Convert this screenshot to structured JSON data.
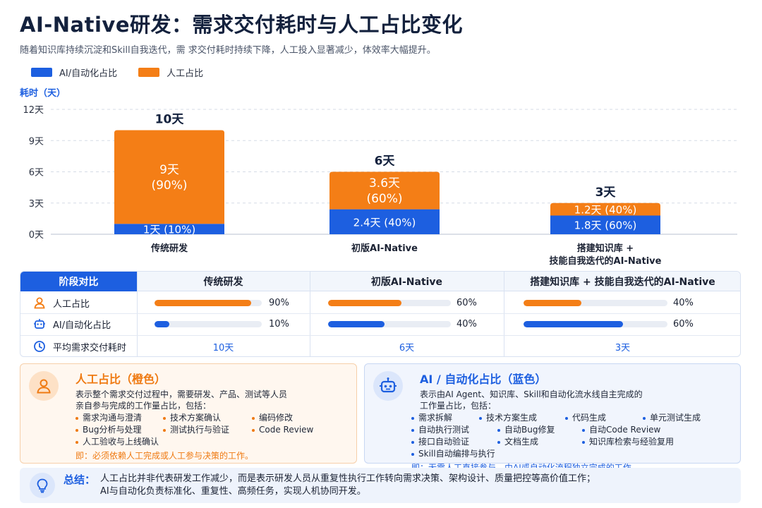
{
  "title": "AI-Native研发：需求交付耗时与人工占比变化",
  "subtitle": "随着知识库持续沉淀和Skill自我迭代，需 求交付耗时持续下降，人工投入显著减少，体效率大幅提升。",
  "colors": {
    "ai": "#1d5fe0",
    "human": "#f47e16",
    "accent": "#1d5fe0"
  },
  "chart_data": {
    "type": "bar",
    "stacked": true,
    "ylabel": "耗时（天）",
    "ylim": [
      0,
      12
    ],
    "yticks": [
      0,
      3,
      6,
      9,
      12
    ],
    "ytick_labels": [
      "0天",
      "3天",
      "6天",
      "9天",
      "12天"
    ],
    "grid": true,
    "legend_position": "top-left",
    "categories": [
      [
        "传统研发"
      ],
      [
        "初版AI-Native"
      ],
      [
        "搭建知识库 +",
        "技能自我迭代的AI-Native"
      ]
    ],
    "totals": [
      10,
      6,
      3
    ],
    "total_labels": [
      "10天",
      "6天",
      "3天"
    ],
    "series": [
      {
        "name": "AI/自动化占比",
        "values": [
          1,
          2.4,
          1.8
        ],
        "labels": [
          [
            "1天 (10%)"
          ],
          [
            "2.4天 (40%)"
          ],
          [
            "1.8天 (60%)"
          ]
        ]
      },
      {
        "name": "人工占比",
        "values": [
          9,
          3.6,
          1.2
        ],
        "labels": [
          [
            "9天",
            "(90%)"
          ],
          [
            "3.6天",
            "(60%)"
          ],
          [
            "1.2天 (40%)"
          ]
        ]
      }
    ]
  },
  "table": {
    "header": "阶段对比",
    "columns": [
      "传统研发",
      "初版AI-Native",
      "搭建知识库 + 技能自我迭代的AI-Native"
    ],
    "rows": {
      "human": {
        "label": "人工占比",
        "values": [
          90,
          60,
          40
        ],
        "texts": [
          "90%",
          "60%",
          "40%"
        ]
      },
      "ai": {
        "label": "AI/自动化占比",
        "values": [
          10,
          40,
          60
        ],
        "texts": [
          "10%",
          "40%",
          "60%"
        ]
      },
      "time": {
        "label": "平均需求交付耗时",
        "texts": [
          "10天",
          "6天",
          "3天"
        ]
      }
    }
  },
  "human_panel": {
    "title": "人工占比（橙色）",
    "desc1": "表示整个需求交付过程中，需要研发、产品、测试等人员",
    "desc2": "亲自参与完成的工作量占比，包括：",
    "items": [
      "需求沟通与澄清",
      "技术方案确认",
      "编码修改",
      "Bug分析与处理",
      "测试执行与验证",
      "Code Review",
      "人工验收与上线确认"
    ],
    "conclusion": "即：必须依赖人工完成或人工参与决策的工作。",
    "icon": "person-icon"
  },
  "ai_panel": {
    "title": "AI / 自动化占比（蓝色）",
    "desc1": "表示由AI Agent、知识库、Skill和自动化流水线自主完成的",
    "desc2": "工作量占比，包括：",
    "items": [
      "需求拆解",
      "技术方案生成",
      "代码生成",
      "单元测试生成",
      "自动执行测试",
      "自动Bug修复",
      "自动Code Review",
      "接口自动验证",
      "文档生成",
      "知识库检索与经验复用",
      "Skill自动编排与执行"
    ],
    "conclusion": "即：无需人工直接参与，由AI或自动化流程独立完成的工作。",
    "icon": "robot-icon"
  },
  "summary": {
    "label": "总结：",
    "line1": "人工占比并非代表研发工作减少，而是表示研发人员从重复性执行工作转向需求决策、架构设计、质量把控等高价值工作；",
    "line2": "AI与自动化负责标准化、重复性、高频任务，实现人机协同开发。",
    "icon": "lightbulb-icon"
  }
}
